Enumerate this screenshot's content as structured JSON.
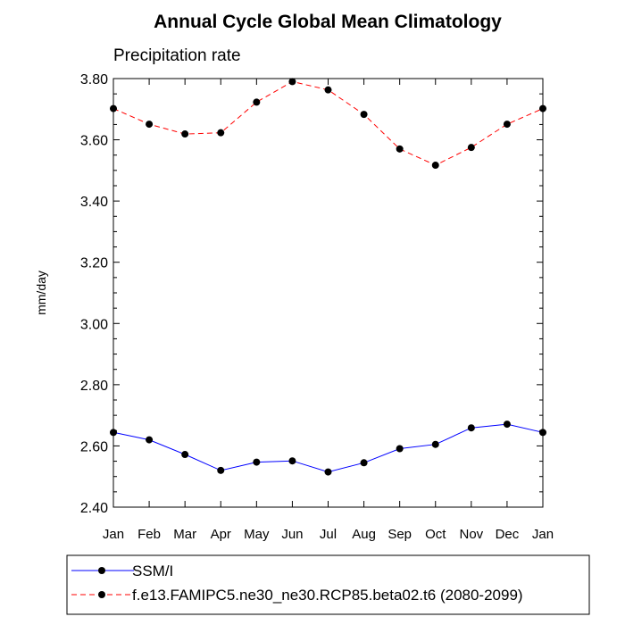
{
  "chart_data": {
    "type": "line",
    "title": "Annual Cycle Global Mean Climatology",
    "subtitle": "Precipitation rate",
    "xlabel": "",
    "ylabel": "mm/day",
    "categories": [
      "Jan",
      "Feb",
      "Mar",
      "Apr",
      "May",
      "Jun",
      "Jul",
      "Aug",
      "Sep",
      "Oct",
      "Nov",
      "Dec",
      "Jan"
    ],
    "ylim": [
      2.4,
      3.8
    ],
    "yticks": [
      "2.40",
      "2.60",
      "2.80",
      "3.00",
      "3.20",
      "3.40",
      "3.60",
      "3.80"
    ],
    "grid": false,
    "legend_position": "bottom",
    "series": [
      {
        "name": "SSM/I",
        "color": "#0000ff",
        "line_style": "solid",
        "marker": "filled-circle",
        "values": [
          2.644,
          2.62,
          2.572,
          2.52,
          2.547,
          2.551,
          2.515,
          2.545,
          2.591,
          2.605,
          2.659,
          2.671,
          2.644
        ]
      },
      {
        "name": "f.e13.FAMIPC5.ne30_ne30.RCP85.beta02.t6 (2080-2099)",
        "color": "#ff0000",
        "line_style": "dashed",
        "marker": "filled-circle",
        "values": [
          3.702,
          3.651,
          3.619,
          3.623,
          3.723,
          3.79,
          3.763,
          3.683,
          3.57,
          3.517,
          3.575,
          3.651,
          3.702
        ]
      }
    ]
  }
}
